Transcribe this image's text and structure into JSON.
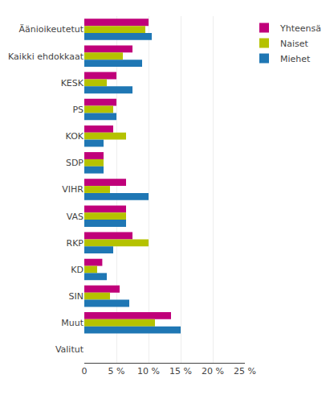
{
  "chart_data": {
    "type": "bar",
    "orientation": "horizontal",
    "categories": [
      "Äänioikeutetut",
      "Kaikki ehdokkaat",
      "KESK",
      "PS",
      "KOK",
      "SDP",
      "VIHR",
      "VAS",
      "RKP",
      "KD",
      "SIN",
      "Muut",
      "Valitut"
    ],
    "series": [
      {
        "name": "Yhteensä",
        "color": "#c0007a",
        "values": [
          10.0,
          7.5,
          5.0,
          5.0,
          4.5,
          3.0,
          6.5,
          6.5,
          7.5,
          2.8,
          5.5,
          13.5,
          0.0
        ]
      },
      {
        "name": "Naiset",
        "color": "#b5c200",
        "values": [
          9.5,
          6.0,
          3.5,
          4.5,
          6.5,
          3.0,
          4.0,
          6.5,
          10.0,
          2.0,
          4.0,
          11.0,
          0.0
        ]
      },
      {
        "name": "Miehet",
        "color": "#1f77b4",
        "values": [
          10.5,
          9.0,
          7.5,
          5.0,
          3.0,
          3.0,
          10.0,
          6.5,
          4.5,
          3.5,
          7.0,
          15.0,
          0.0
        ]
      }
    ],
    "xlim": [
      0,
      25
    ],
    "xticks": [
      0,
      {
        "value": 5,
        "label": "5 %"
      },
      {
        "value": 10,
        "label": "10 %"
      },
      {
        "value": 15,
        "label": "15 %"
      },
      {
        "value": 20,
        "label": "20 %"
      },
      {
        "value": 25,
        "label": "25 %"
      }
    ],
    "grid": true,
    "legend": "upper right"
  }
}
